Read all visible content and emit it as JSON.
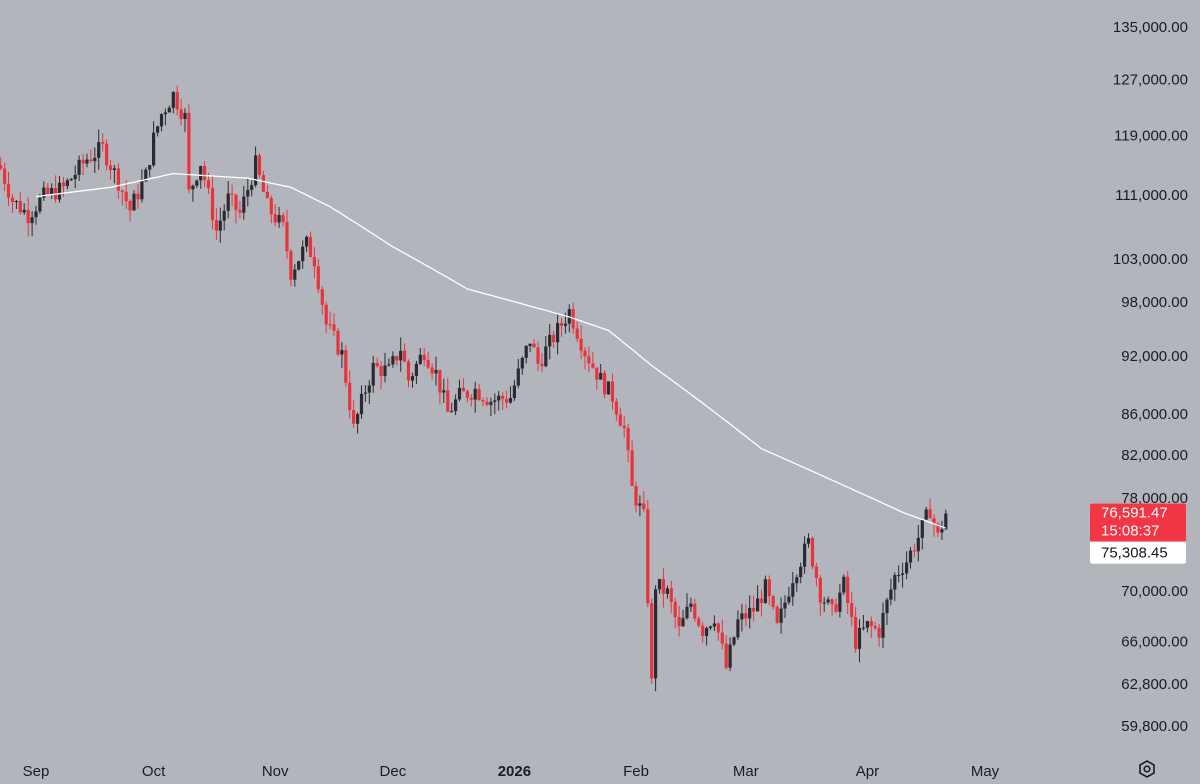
{
  "chart_data": {
    "type": "candlestick",
    "y_scale": "log",
    "y_ticks": [
      "135,000.00",
      "127,000.00",
      "119,000.00",
      "111,000.00",
      "103,000.00",
      "98,000.00",
      "92,000.00",
      "86,000.00",
      "82,000.00",
      "78,000.00",
      "70,000.00",
      "66,000.00",
      "62,800.00",
      "59,800.00"
    ],
    "y_tick_values": [
      135000,
      127000,
      119000,
      111000,
      103000,
      98000,
      92000,
      86000,
      82000,
      78000,
      70000,
      66000,
      62800,
      59800
    ],
    "x_ticks": [
      {
        "label": "Sep",
        "date": "2025-09-01"
      },
      {
        "label": "Oct",
        "date": "2025-10-01"
      },
      {
        "label": "Nov",
        "date": "2025-11-01"
      },
      {
        "label": "Dec",
        "date": "2025-12-01"
      },
      {
        "label": "2026",
        "date": "2026-01-01",
        "bold": true
      },
      {
        "label": "Feb",
        "date": "2026-02-01"
      },
      {
        "label": "Mar",
        "date": "2026-03-01"
      },
      {
        "label": "Apr",
        "date": "2026-04-01"
      },
      {
        "label": "May",
        "date": "2026-05-01"
      }
    ],
    "current_price": {
      "label": "76,591.47",
      "countdown": "15:08:37",
      "value": 76591.47,
      "color": "#f23645"
    },
    "moving_average_tag": {
      "label": "75,308.45",
      "value": 75308.45
    },
    "up_color": "#2a2b30",
    "down_color": "#e8333d",
    "ma_color": "#ffffff",
    "grid": false,
    "close_anchors": [
      [
        "2025-08-23",
        114500
      ],
      [
        "2025-08-26",
        110300
      ],
      [
        "2025-08-30",
        108500
      ],
      [
        "2025-09-03",
        110800
      ],
      [
        "2025-09-08",
        111900
      ],
      [
        "2025-09-14",
        115800
      ],
      [
        "2025-09-18",
        117200
      ],
      [
        "2025-09-22",
        112800
      ],
      [
        "2025-09-25",
        109100
      ],
      [
        "2025-09-29",
        113500
      ],
      [
        "2025-10-01",
        118500
      ],
      [
        "2025-10-03",
        122000
      ],
      [
        "2025-10-06",
        124800
      ],
      [
        "2025-10-09",
        121500
      ],
      [
        "2025-10-10",
        111200
      ],
      [
        "2025-10-13",
        115300
      ],
      [
        "2025-10-17",
        106500
      ],
      [
        "2025-10-20",
        110500
      ],
      [
        "2025-10-23",
        108600
      ],
      [
        "2025-10-27",
        115000
      ],
      [
        "2025-10-30",
        109500
      ],
      [
        "2025-11-03",
        106800
      ],
      [
        "2025-11-05",
        101500
      ],
      [
        "2025-11-09",
        104800
      ],
      [
        "2025-11-11",
        103000
      ],
      [
        "2025-11-14",
        95500
      ],
      [
        "2025-11-18",
        92200
      ],
      [
        "2025-11-21",
        84500
      ],
      [
        "2025-11-24",
        88500
      ],
      [
        "2025-11-26",
        90800
      ],
      [
        "2025-11-30",
        90400
      ],
      [
        "2025-12-03",
        92900
      ],
      [
        "2025-12-05",
        89500
      ],
      [
        "2025-12-09",
        92600
      ],
      [
        "2025-12-12",
        90200
      ],
      [
        "2025-12-15",
        86100
      ],
      [
        "2025-12-18",
        87800
      ],
      [
        "2025-12-22",
        88500
      ],
      [
        "2025-12-26",
        87400
      ],
      [
        "2025-12-31",
        87700
      ],
      [
        "2026-01-05",
        93800
      ],
      [
        "2026-01-07",
        91200
      ],
      [
        "2026-01-13",
        95500
      ],
      [
        "2026-01-15",
        97000
      ],
      [
        "2026-01-19",
        92500
      ],
      [
        "2026-01-23",
        89500
      ],
      [
        "2026-01-26",
        87800
      ],
      [
        "2026-01-29",
        84500
      ],
      [
        "2026-01-31",
        78800
      ],
      [
        "2026-02-03",
        76200
      ],
      [
        "2026-02-05",
        62800
      ],
      [
        "2026-02-06",
        70500
      ],
      [
        "2026-02-09",
        69800
      ],
      [
        "2026-02-12",
        66800
      ],
      [
        "2026-02-15",
        69000
      ],
      [
        "2026-02-18",
        66900
      ],
      [
        "2026-02-21",
        68000
      ],
      [
        "2026-02-24",
        64000
      ],
      [
        "2026-02-27",
        67500
      ],
      [
        "2026-03-03",
        68500
      ],
      [
        "2026-03-06",
        70200
      ],
      [
        "2026-03-09",
        67000
      ],
      [
        "2026-03-13",
        71200
      ],
      [
        "2026-03-17",
        74000
      ],
      [
        "2026-03-20",
        69800
      ],
      [
        "2026-03-23",
        68200
      ],
      [
        "2026-03-26",
        70500
      ],
      [
        "2026-03-29",
        66000
      ],
      [
        "2026-04-01",
        67200
      ],
      [
        "2026-04-04",
        66800
      ],
      [
        "2026-04-08",
        71200
      ],
      [
        "2026-04-11",
        72500
      ],
      [
        "2026-04-14",
        74500
      ],
      [
        "2026-04-17",
        77000
      ],
      [
        "2026-04-19",
        74500
      ],
      [
        "2026-04-21",
        76600
      ]
    ],
    "ma_anchors": [
      [
        "2025-09-01",
        110800
      ],
      [
        "2025-09-20",
        112000
      ],
      [
        "2025-10-06",
        113800
      ],
      [
        "2025-10-25",
        113200
      ],
      [
        "2025-11-05",
        112000
      ],
      [
        "2025-11-15",
        109500
      ],
      [
        "2025-12-01",
        104500
      ],
      [
        "2025-12-20",
        99500
      ],
      [
        "2026-01-15",
        96300
      ],
      [
        "2026-01-25",
        94800
      ],
      [
        "2026-02-05",
        91000
      ],
      [
        "2026-02-20",
        86500
      ],
      [
        "2026-03-05",
        82600
      ],
      [
        "2026-03-25",
        79300
      ],
      [
        "2026-04-10",
        76700
      ],
      [
        "2026-04-21",
        75300
      ]
    ]
  }
}
